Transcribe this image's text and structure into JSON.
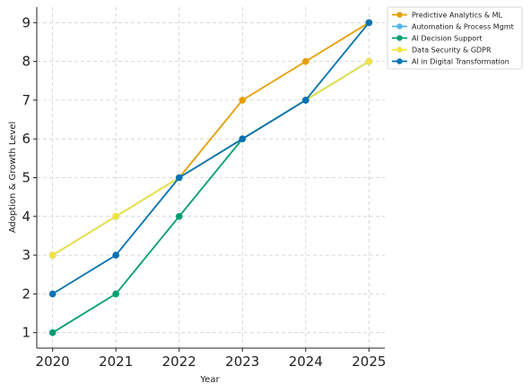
{
  "chart_data": {
    "type": "line",
    "title": "",
    "xlabel": "Year",
    "ylabel": "Adoption & Growth Level",
    "x": [
      2020,
      2021,
      2022,
      2023,
      2024,
      2025
    ],
    "xlim": [
      2019.75,
      2025.25
    ],
    "ylim": [
      0.6,
      9.4
    ],
    "yticks": [
      1,
      2,
      3,
      4,
      5,
      6,
      7,
      8,
      9
    ],
    "grid": true,
    "legend_position": "top-right",
    "series": [
      {
        "name": "Predictive Analytics & ML",
        "color": "#E69F00",
        "values": [
          3,
          4,
          5,
          7,
          8,
          9
        ]
      },
      {
        "name": "Automation & Process Mgmt",
        "color": "#56B4E9",
        "values": [
          3,
          4,
          5,
          6,
          7,
          8
        ]
      },
      {
        "name": "AI Decision Support",
        "color": "#009E73",
        "values": [
          1,
          2,
          4,
          6,
          7,
          8
        ]
      },
      {
        "name": "Data Security & GDPR",
        "color": "#F0E442",
        "values": [
          3,
          4,
          5,
          6,
          7,
          8
        ]
      },
      {
        "name": "AI in Digital Transformation",
        "color": "#0072B2",
        "values": [
          2,
          3,
          5,
          6,
          7,
          9
        ]
      }
    ]
  }
}
